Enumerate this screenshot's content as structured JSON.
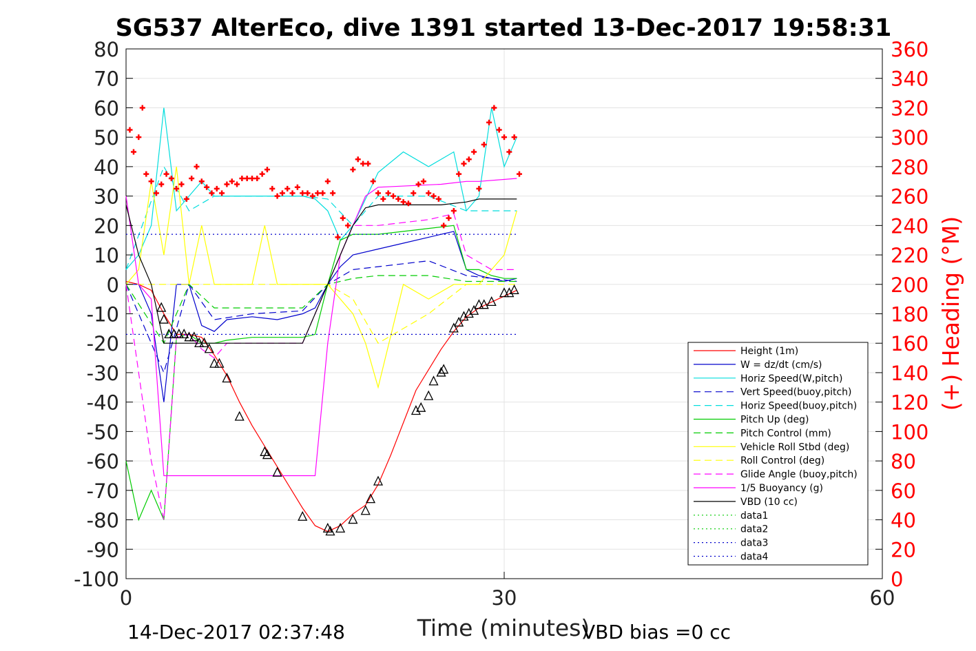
{
  "chart_data": {
    "type": "line",
    "title": "SG537 AlterEco, dive 1391 started 13-Dec-2017 19:58:31",
    "xlabel": "Time (minutes)",
    "ylabel_right": "(+) Heading (°M)",
    "footer_left": "14-Dec-2017 02:37:48",
    "footer_right": "VBD bias =0 cc",
    "xlim": [
      0,
      60
    ],
    "ylim": [
      -100,
      80
    ],
    "y2lim": [
      0,
      360
    ],
    "x_ticks": [
      "0",
      "30",
      "60"
    ],
    "y_ticks": [
      "80",
      "70",
      "60",
      "50",
      "40",
      "30",
      "20",
      "10",
      "0",
      "-10",
      "-20",
      "-30",
      "-40",
      "-50",
      "-60",
      "-70",
      "-80",
      "-90",
      "-100"
    ],
    "y2_ticks": [
      "360",
      "340",
      "320",
      "300",
      "280",
      "260",
      "240",
      "220",
      "200",
      "180",
      "160",
      "140",
      "120",
      "100",
      "80",
      "60",
      "40",
      "20",
      "0"
    ],
    "grid": true,
    "legend_placement": "bottom-right",
    "series": [
      {
        "name": "Height (1m)",
        "color": "#ff0000",
        "dash": "",
        "x": [
          0,
          1,
          2,
          3,
          4,
          5,
          6,
          7,
          8,
          9,
          10,
          11,
          12,
          13,
          14,
          15,
          16,
          17,
          18,
          19,
          20,
          21,
          22,
          23,
          24,
          25,
          26,
          27,
          28,
          29,
          30,
          31
        ],
        "y": [
          1,
          0,
          -2,
          -10,
          -17,
          -17,
          -18,
          -24,
          -31,
          -40,
          -48,
          -55,
          -62,
          -69,
          -76,
          -82,
          -84,
          -82,
          -78,
          -75,
          -68,
          -58,
          -47,
          -36,
          -29,
          -22,
          -16,
          -11,
          -8,
          -6,
          -4,
          -2
        ]
      },
      {
        "name": "W = dz/dt (cm/s)",
        "color": "#0000cc",
        "dash": "",
        "x": [
          0,
          1,
          2,
          3,
          4,
          5,
          6,
          7,
          8,
          10,
          12,
          14,
          15,
          16,
          17,
          18,
          20,
          22,
          24,
          26,
          27,
          28,
          29,
          30,
          31
        ],
        "y": [
          0,
          0,
          -10,
          -40,
          0,
          0,
          -14,
          -16,
          -12,
          -11,
          -12,
          -10,
          -8,
          0,
          6,
          10,
          12,
          14,
          16,
          18,
          5,
          3,
          2,
          1,
          2
        ]
      },
      {
        "name": "Horiz Speed(W,pitch)",
        "color": "#00dddd",
        "dash": "",
        "x": [
          0,
          1,
          2,
          3,
          4,
          5,
          6,
          7,
          8,
          10,
          12,
          14,
          15,
          16,
          17,
          18,
          20,
          22,
          24,
          26,
          27,
          28,
          29,
          30,
          31
        ],
        "y": [
          5,
          10,
          20,
          60,
          25,
          30,
          35,
          30,
          30,
          30,
          30,
          30,
          29,
          25,
          15,
          20,
          38,
          45,
          40,
          45,
          25,
          30,
          60,
          40,
          50
        ]
      },
      {
        "name": "Vert Speed(buoy,pitch)",
        "color": "#0000cc",
        "dash": "10,6",
        "x": [
          0,
          3,
          5,
          7,
          10,
          14,
          16,
          18,
          20,
          24,
          27,
          29,
          31
        ],
        "y": [
          0,
          -30,
          0,
          -12,
          -10,
          -9,
          0,
          5,
          6,
          8,
          3,
          2,
          1
        ]
      },
      {
        "name": "Horiz Speed(buoy,pitch)",
        "color": "#00dddd",
        "dash": "10,6",
        "x": [
          0,
          3,
          5,
          7,
          10,
          14,
          16,
          18,
          20,
          24,
          27,
          29,
          31
        ],
        "y": [
          5,
          40,
          25,
          30,
          30,
          30,
          29,
          20,
          30,
          30,
          25,
          25,
          25
        ]
      },
      {
        "name": "Pitch Up (deg)",
        "color": "#00cc00",
        "dash": "",
        "x": [
          0,
          1,
          2,
          3,
          4,
          5,
          6,
          7,
          8,
          10,
          12,
          14,
          15,
          16,
          17,
          18,
          20,
          22,
          24,
          26,
          27,
          28,
          29,
          30,
          31
        ],
        "y": [
          -60,
          -80,
          -70,
          -80,
          -18,
          -17,
          -20,
          -20,
          -19,
          -18,
          -18,
          -18,
          -17,
          0,
          15,
          17,
          17,
          18,
          19,
          20,
          5,
          5,
          3,
          2,
          2
        ]
      },
      {
        "name": "Pitch Control (mm)",
        "color": "#00cc00",
        "dash": "10,6",
        "x": [
          0,
          3,
          5,
          7,
          10,
          14,
          16,
          18,
          20,
          24,
          27,
          29,
          31
        ],
        "y": [
          0,
          -20,
          0,
          -8,
          -8,
          -8,
          0,
          2,
          3,
          3,
          1,
          1,
          1
        ]
      },
      {
        "name": "Vehicle Roll Stbd (deg)",
        "color": "#ffff00",
        "dash": "",
        "x": [
          0,
          1,
          2,
          3,
          4,
          5,
          6,
          7,
          8,
          10,
          11,
          12,
          14,
          15,
          16,
          17,
          18,
          19,
          20,
          22,
          24,
          26,
          27,
          28,
          29,
          30,
          31
        ],
        "y": [
          0,
          5,
          35,
          10,
          40,
          0,
          20,
          0,
          0,
          0,
          20,
          0,
          0,
          0,
          0,
          -5,
          -10,
          -20,
          -35,
          0,
          -5,
          0,
          0,
          0,
          5,
          10,
          25
        ]
      },
      {
        "name": "Roll Control (deg)",
        "color": "#ffff00",
        "dash": "10,6",
        "x": [
          0,
          3,
          5,
          7,
          10,
          14,
          16,
          18,
          20,
          24,
          27,
          29,
          31
        ],
        "y": [
          0,
          0,
          0,
          0,
          0,
          0,
          0,
          -5,
          -20,
          -10,
          0,
          0,
          0
        ]
      },
      {
        "name": "Glide Angle (buoy,pitch)",
        "color": "#ff00ff",
        "dash": "10,6",
        "x": [
          0,
          1,
          2,
          3,
          4,
          5,
          6,
          7,
          8,
          10,
          14,
          16,
          17,
          18,
          20,
          24,
          26,
          27,
          29,
          31
        ],
        "y": [
          0,
          -30,
          -60,
          -80,
          -18,
          -17,
          -22,
          -25,
          -20,
          -20,
          -20,
          0,
          10,
          20,
          20,
          22,
          24,
          10,
          5,
          5
        ]
      },
      {
        "name": "1/5 Buoyancy (g)",
        "color": "#ff00ff",
        "dash": "",
        "x": [
          0,
          1,
          2,
          3,
          5,
          10,
          15,
          16,
          17,
          18,
          19,
          20,
          25,
          27,
          28,
          31
        ],
        "y": [
          30,
          0,
          -5,
          -65,
          -65,
          -65,
          -65,
          -20,
          10,
          20,
          30,
          33,
          34,
          35,
          35,
          36
        ]
      },
      {
        "name": "VBD (10 cc)",
        "color": "#000000",
        "dash": "",
        "x": [
          0,
          1,
          2,
          3,
          4,
          5,
          10,
          14,
          15,
          16,
          17,
          18,
          19,
          20,
          25,
          27,
          28,
          31
        ],
        "y": [
          27,
          10,
          0,
          -20,
          -20,
          -20,
          -20,
          -20,
          -10,
          0,
          10,
          20,
          26,
          27,
          27,
          28,
          29,
          29
        ]
      },
      {
        "name": "data1",
        "color": "#00cc00",
        "dash": "2,4",
        "x": [],
        "y": []
      },
      {
        "name": "data2",
        "color": "#00cc00",
        "dash": "2,4",
        "x": [],
        "y": []
      },
      {
        "name": "data3",
        "color": "#0000cc",
        "dash": "2,4",
        "x": [
          0,
          31
        ],
        "y": [
          17,
          17
        ]
      },
      {
        "name": "data4",
        "color": "#0000cc",
        "dash": "2,4",
        "x": [
          0,
          31
        ],
        "y": [
          -17,
          -17
        ]
      }
    ],
    "heading": {
      "name": "(+) Heading (°M)",
      "color": "#ff0000",
      "x": [
        0.3,
        0.6,
        1,
        1.3,
        1.6,
        2,
        2.4,
        2.8,
        3.2,
        3.6,
        4,
        4.4,
        4.8,
        5.2,
        5.6,
        6,
        6.4,
        6.8,
        7.2,
        7.6,
        8,
        8.4,
        8.8,
        9.2,
        9.6,
        10,
        10.4,
        10.8,
        11.2,
        11.6,
        12,
        12.4,
        12.8,
        13.2,
        13.6,
        14,
        14.4,
        14.8,
        15.2,
        15.6,
        16,
        16.4,
        16.8,
        17.2,
        17.6,
        18,
        18.4,
        18.8,
        19.2,
        19.6,
        20,
        20.4,
        20.8,
        21.2,
        21.6,
        22,
        22.4,
        22.8,
        23.2,
        23.6,
        24,
        24.4,
        24.8,
        25.2,
        25.6,
        26,
        26.4,
        26.8,
        27.2,
        27.6,
        28,
        28.4,
        28.8,
        29.2,
        29.6,
        30,
        30.4,
        30.8,
        31.2
      ],
      "y": [
        305,
        290,
        300,
        320,
        275,
        270,
        262,
        268,
        275,
        272,
        265,
        268,
        258,
        272,
        280,
        270,
        266,
        262,
        265,
        262,
        268,
        270,
        268,
        272,
        272,
        272,
        272,
        275,
        278,
        265,
        260,
        262,
        265,
        262,
        266,
        262,
        262,
        260,
        262,
        262,
        270,
        262,
        232,
        245,
        240,
        278,
        285,
        282,
        282,
        270,
        262,
        258,
        262,
        260,
        258,
        256,
        255,
        262,
        268,
        270,
        262,
        260,
        258,
        240,
        245,
        250,
        275,
        282,
        285,
        290,
        265,
        295,
        310,
        320,
        305,
        300,
        290,
        300,
        275
      ]
    },
    "markers": {
      "x": [
        2.8,
        3,
        3.4,
        3.8,
        4.2,
        4.6,
        5,
        5.4,
        5.8,
        6.2,
        6.6,
        7,
        7.4,
        8,
        9,
        11,
        11.2,
        12,
        14,
        16,
        16.2,
        17,
        18,
        19,
        19.4,
        20,
        23,
        23.4,
        24,
        24.4,
        25,
        25.2,
        26,
        26.4,
        26.8,
        27.2,
        27.6,
        28,
        28.4,
        29,
        30,
        30.4,
        30.8
      ],
      "y": [
        -8,
        -12,
        -17,
        -17,
        -17,
        -17,
        -18,
        -18,
        -20,
        -20,
        -22,
        -27,
        -27,
        -32,
        -45,
        -57,
        -58,
        -64,
        -79,
        -83,
        -84,
        -83,
        -80,
        -77,
        -73,
        -67,
        -43,
        -42,
        -38,
        -33,
        -30,
        -29,
        -15,
        -13,
        -11,
        -10,
        -9,
        -7,
        -7,
        -6,
        -3,
        -3,
        -2
      ]
    }
  }
}
